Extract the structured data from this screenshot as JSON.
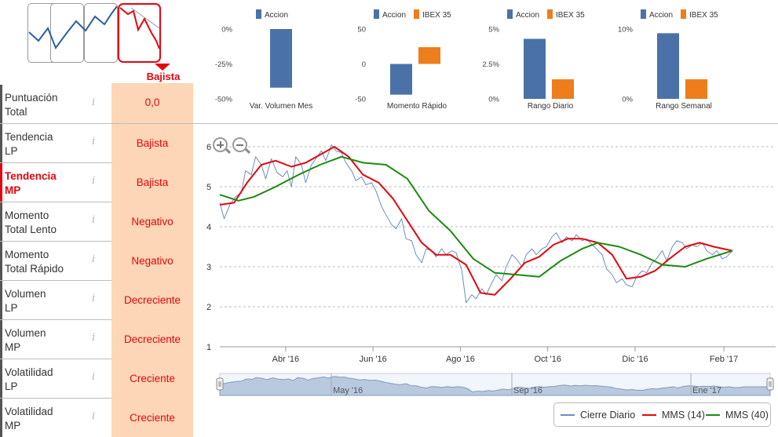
{
  "trend_picker": {
    "options": [
      "alcista",
      "lateral",
      "lateral-bajista",
      "bajista"
    ],
    "selected_label": "Bajista"
  },
  "indicators": [
    {
      "label_line1": "Puntuación",
      "label_line2": "Total",
      "value": "0,0",
      "active": false
    },
    {
      "label_line1": "Tendencia",
      "label_line2": "LP",
      "value": "Bajista",
      "active": false
    },
    {
      "label_line1": "Tendencia",
      "label_line2": "MP",
      "value": "Bajista",
      "active": true
    },
    {
      "label_line1": "Momento",
      "label_line2": "Total Lento",
      "value": "Negativo",
      "active": false
    },
    {
      "label_line1": "Momento",
      "label_line2": "Total Rápido",
      "value": "Negativo",
      "active": false
    },
    {
      "label_line1": "Volumen",
      "label_line2": "LP",
      "value": "Decreciente",
      "active": false
    },
    {
      "label_line1": "Volumen",
      "label_line2": "MP",
      "value": "Decreciente",
      "active": false
    },
    {
      "label_line1": "Volatilidad",
      "label_line2": "LP",
      "value": "Creciente",
      "active": false
    },
    {
      "label_line1": "Volatilidad",
      "label_line2": "MP",
      "value": "Creciente",
      "active": false
    }
  ],
  "info_glyph": "i",
  "colors": {
    "accion": "#4a72a8",
    "ibex": "#ee7d1b",
    "daily": "#6b8ebf",
    "mms14": "#e3060f",
    "mms40": "#1a8a10",
    "accent_red": "#e3060f",
    "value_bg": "#fcd6b6",
    "navigator_fill": "#b9c9de"
  },
  "chart_data": [
    {
      "type": "bar",
      "id": "var-volumen-mes",
      "categories": [
        "Var. Volumen Mes"
      ],
      "series": [
        {
          "name": "Accion",
          "values": [
            -42
          ]
        }
      ],
      "ylim": [
        -50,
        0
      ],
      "ticks": [
        {
          "v": 0,
          "label": "0%"
        },
        {
          "v": -25,
          "label": "-25%"
        },
        {
          "v": -50,
          "label": "-50%"
        }
      ]
    },
    {
      "type": "bar",
      "id": "momento-rapido",
      "categories": [
        "Momento Rápido"
      ],
      "series": [
        {
          "name": "Accion",
          "values": [
            -44
          ]
        },
        {
          "name": "IBEX 35",
          "values": [
            24
          ]
        }
      ],
      "ylim": [
        -50,
        50
      ],
      "ticks": [
        {
          "v": 50,
          "label": "50"
        },
        {
          "v": 0,
          "label": "0"
        },
        {
          "v": -50,
          "label": "-50"
        }
      ]
    },
    {
      "type": "bar",
      "id": "rango-diario",
      "categories": [
        "Rango Diario"
      ],
      "series": [
        {
          "name": "Accion",
          "values": [
            4.3
          ]
        },
        {
          "name": "IBEX 35",
          "values": [
            1.4
          ]
        }
      ],
      "ylim": [
        0,
        5
      ],
      "ticks": [
        {
          "v": 5,
          "label": "5%"
        },
        {
          "v": 2.5,
          "label": "2.5%"
        },
        {
          "v": 0,
          "label": "0%"
        }
      ]
    },
    {
      "type": "bar",
      "id": "rango-semanal",
      "categories": [
        "Rango Semanal"
      ],
      "series": [
        {
          "name": "Accion",
          "values": [
            9.4
          ]
        },
        {
          "name": "IBEX 35",
          "values": [
            2.8
          ]
        }
      ],
      "ylim": [
        0,
        10
      ],
      "ticks": [
        {
          "v": 10,
          "label": "10%"
        },
        {
          "v": 0,
          "label": "0%"
        }
      ]
    },
    {
      "type": "line",
      "id": "price-chart",
      "ylim": [
        1,
        6
      ],
      "yticks": [
        "1",
        "2",
        "3",
        "4",
        "5",
        "6"
      ],
      "xlim": [
        "2016-02-15",
        "2017-02-24"
      ],
      "xticks": [
        {
          "date": "2016-04-01",
          "label": "Abr '16"
        },
        {
          "date": "2016-06-01",
          "label": "Jun '16"
        },
        {
          "date": "2016-08-01",
          "label": "Ago '16"
        },
        {
          "date": "2016-10-01",
          "label": "Oct '16"
        },
        {
          "date": "2016-12-01",
          "label": "Dic '16"
        },
        {
          "date": "2017-02-01",
          "label": "Feb '17"
        }
      ],
      "series": [
        {
          "name": "Cierre Diario",
          "points": [
            [
              "2016-02-15",
              4.6
            ],
            [
              "2016-02-18",
              4.2
            ],
            [
              "2016-02-22",
              4.55
            ],
            [
              "2016-02-26",
              4.75
            ],
            [
              "2016-03-01",
              4.85
            ],
            [
              "2016-03-04",
              5.4
            ],
            [
              "2016-03-08",
              5.3
            ],
            [
              "2016-03-11",
              5.75
            ],
            [
              "2016-03-15",
              5.55
            ],
            [
              "2016-03-18",
              5.2
            ],
            [
              "2016-03-22",
              5.7
            ],
            [
              "2016-03-26",
              5.35
            ],
            [
              "2016-03-30",
              5.25
            ],
            [
              "2016-04-02",
              5.4
            ],
            [
              "2016-04-05",
              5.0
            ],
            [
              "2016-04-08",
              5.75
            ],
            [
              "2016-04-12",
              5.55
            ],
            [
              "2016-04-15",
              5.1
            ],
            [
              "2016-04-19",
              5.55
            ],
            [
              "2016-04-22",
              5.7
            ],
            [
              "2016-04-26",
              5.9
            ],
            [
              "2016-04-29",
              5.65
            ],
            [
              "2016-05-03",
              6.05
            ],
            [
              "2016-05-06",
              5.9
            ],
            [
              "2016-05-10",
              5.85
            ],
            [
              "2016-05-13",
              5.6
            ],
            [
              "2016-05-17",
              5.4
            ],
            [
              "2016-05-20",
              5.15
            ],
            [
              "2016-05-24",
              5.25
            ],
            [
              "2016-05-27",
              5.05
            ],
            [
              "2016-05-31",
              5.1
            ],
            [
              "2016-06-03",
              4.9
            ],
            [
              "2016-06-07",
              4.5
            ],
            [
              "2016-06-10",
              4.3
            ],
            [
              "2016-06-14",
              4.05
            ],
            [
              "2016-06-17",
              3.95
            ],
            [
              "2016-06-21",
              4.2
            ],
            [
              "2016-06-24",
              3.7
            ],
            [
              "2016-06-28",
              3.65
            ],
            [
              "2016-07-01",
              3.3
            ],
            [
              "2016-07-05",
              3.1
            ],
            [
              "2016-07-08",
              3.45
            ],
            [
              "2016-07-12",
              3.4
            ],
            [
              "2016-07-15",
              3.25
            ],
            [
              "2016-07-19",
              3.45
            ],
            [
              "2016-07-22",
              3.3
            ],
            [
              "2016-07-26",
              3.4
            ],
            [
              "2016-07-29",
              3.35
            ],
            [
              "2016-08-02",
              2.9
            ],
            [
              "2016-08-05",
              2.1
            ],
            [
              "2016-08-09",
              2.3
            ],
            [
              "2016-08-12",
              2.2
            ],
            [
              "2016-08-16",
              2.45
            ],
            [
              "2016-08-19",
              2.3
            ],
            [
              "2016-08-23",
              2.6
            ],
            [
              "2016-08-26",
              2.8
            ],
            [
              "2016-08-30",
              2.65
            ],
            [
              "2016-09-02",
              3.0
            ],
            [
              "2016-09-06",
              3.3
            ],
            [
              "2016-09-09",
              3.2
            ],
            [
              "2016-09-13",
              3.0
            ],
            [
              "2016-09-16",
              3.3
            ],
            [
              "2016-09-20",
              3.45
            ],
            [
              "2016-09-23",
              3.3
            ],
            [
              "2016-09-27",
              3.45
            ],
            [
              "2016-09-30",
              3.5
            ],
            [
              "2016-10-04",
              3.75
            ],
            [
              "2016-10-07",
              3.85
            ],
            [
              "2016-10-11",
              3.6
            ],
            [
              "2016-10-14",
              3.75
            ],
            [
              "2016-10-18",
              3.65
            ],
            [
              "2016-10-21",
              3.8
            ],
            [
              "2016-10-25",
              3.65
            ],
            [
              "2016-10-28",
              3.7
            ],
            [
              "2016-11-01",
              3.55
            ],
            [
              "2016-11-04",
              3.45
            ],
            [
              "2016-11-08",
              3.3
            ],
            [
              "2016-11-11",
              2.95
            ],
            [
              "2016-11-15",
              2.8
            ],
            [
              "2016-11-18",
              2.6
            ],
            [
              "2016-11-22",
              2.7
            ],
            [
              "2016-11-25",
              2.55
            ],
            [
              "2016-11-29",
              2.5
            ],
            [
              "2016-12-02",
              2.75
            ],
            [
              "2016-12-06",
              2.9
            ],
            [
              "2016-12-09",
              2.85
            ],
            [
              "2016-12-13",
              3.1
            ],
            [
              "2016-12-16",
              3.2
            ],
            [
              "2016-12-20",
              3.4
            ],
            [
              "2016-12-23",
              3.15
            ],
            [
              "2016-12-27",
              3.5
            ],
            [
              "2016-12-30",
              3.65
            ],
            [
              "2017-01-03",
              3.6
            ],
            [
              "2017-01-06",
              3.45
            ],
            [
              "2017-01-10",
              3.55
            ],
            [
              "2017-01-13",
              3.5
            ],
            [
              "2017-01-17",
              3.6
            ],
            [
              "2017-01-20",
              3.4
            ],
            [
              "2017-01-24",
              3.3
            ],
            [
              "2017-01-27",
              3.4
            ],
            [
              "2017-01-31",
              3.2
            ],
            [
              "2017-02-03",
              3.25
            ],
            [
              "2017-02-07",
              3.4
            ]
          ]
        },
        {
          "name": "MMS (14)",
          "points": [
            [
              "2016-02-15",
              4.55
            ],
            [
              "2016-02-25",
              4.6
            ],
            [
              "2016-03-05",
              5.1
            ],
            [
              "2016-03-15",
              5.55
            ],
            [
              "2016-03-25",
              5.65
            ],
            [
              "2016-04-05",
              5.5
            ],
            [
              "2016-04-15",
              5.6
            ],
            [
              "2016-04-25",
              5.8
            ],
            [
              "2016-05-05",
              6.0
            ],
            [
              "2016-05-15",
              5.75
            ],
            [
              "2016-05-25",
              5.3
            ],
            [
              "2016-06-05",
              5.1
            ],
            [
              "2016-06-15",
              4.7
            ],
            [
              "2016-06-25",
              4.15
            ],
            [
              "2016-07-05",
              3.6
            ],
            [
              "2016-07-15",
              3.3
            ],
            [
              "2016-07-25",
              3.3
            ],
            [
              "2016-08-05",
              3.05
            ],
            [
              "2016-08-15",
              2.35
            ],
            [
              "2016-08-25",
              2.3
            ],
            [
              "2016-09-05",
              2.7
            ],
            [
              "2016-09-15",
              3.1
            ],
            [
              "2016-09-25",
              3.25
            ],
            [
              "2016-10-05",
              3.55
            ],
            [
              "2016-10-15",
              3.7
            ],
            [
              "2016-10-25",
              3.7
            ],
            [
              "2016-11-05",
              3.6
            ],
            [
              "2016-11-15",
              3.3
            ],
            [
              "2016-11-25",
              2.7
            ],
            [
              "2016-12-05",
              2.75
            ],
            [
              "2016-12-15",
              2.9
            ],
            [
              "2016-12-25",
              3.2
            ],
            [
              "2017-01-05",
              3.5
            ],
            [
              "2017-01-15",
              3.6
            ],
            [
              "2017-01-25",
              3.5
            ],
            [
              "2017-02-07",
              3.4
            ]
          ]
        },
        {
          "name": "MMS (40)",
          "points": [
            [
              "2016-02-15",
              4.8
            ],
            [
              "2016-02-28",
              4.65
            ],
            [
              "2016-03-10",
              4.75
            ],
            [
              "2016-03-25",
              5.0
            ],
            [
              "2016-04-10",
              5.3
            ],
            [
              "2016-04-25",
              5.55
            ],
            [
              "2016-05-10",
              5.75
            ],
            [
              "2016-05-25",
              5.6
            ],
            [
              "2016-06-10",
              5.55
            ],
            [
              "2016-06-25",
              5.2
            ],
            [
              "2016-07-10",
              4.4
            ],
            [
              "2016-07-25",
              3.9
            ],
            [
              "2016-08-10",
              3.2
            ],
            [
              "2016-08-25",
              2.85
            ],
            [
              "2016-09-10",
              2.8
            ],
            [
              "2016-09-25",
              2.75
            ],
            [
              "2016-10-10",
              3.15
            ],
            [
              "2016-10-25",
              3.45
            ],
            [
              "2016-11-05",
              3.6
            ],
            [
              "2016-11-20",
              3.5
            ],
            [
              "2016-12-05",
              3.3
            ],
            [
              "2016-12-20",
              3.05
            ],
            [
              "2017-01-05",
              3.0
            ],
            [
              "2017-01-20",
              3.2
            ],
            [
              "2017-02-07",
              3.4
            ]
          ]
        }
      ]
    }
  ],
  "navigator": {
    "labels": [
      {
        "date": "2016-05-01",
        "label": "May '16"
      },
      {
        "date": "2016-09-01",
        "label": "Sep '16"
      },
      {
        "date": "2017-01-01",
        "label": "Ene '17"
      }
    ]
  },
  "legend": [
    "Cierre Diario",
    "MMS (14)",
    "MMS (40)"
  ]
}
